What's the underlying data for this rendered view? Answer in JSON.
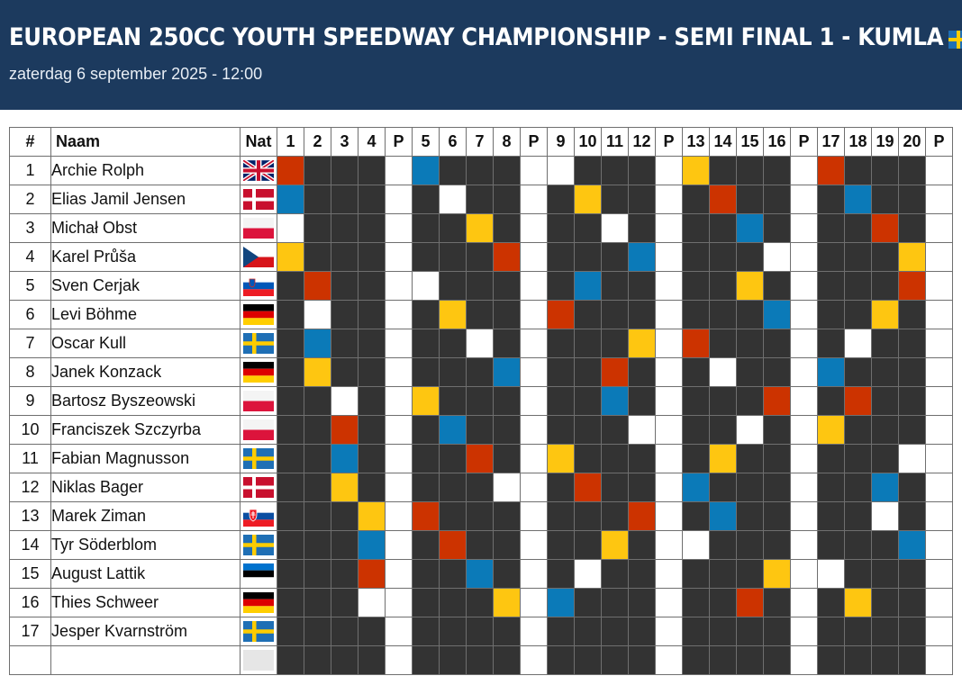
{
  "header": {
    "title": "EUROPEAN 250CC YOUTH SPEEDWAY CHAMPIONSHIP - SEMI FINAL 1 - KUMLA",
    "title_flag": "se",
    "subtitle": "zaterdag 6 september 2025 - 12:00"
  },
  "table": {
    "columns": [
      "#",
      "Naam",
      "Nat",
      "1",
      "2",
      "3",
      "4",
      "P",
      "5",
      "6",
      "7",
      "8",
      "P",
      "9",
      "10",
      "11",
      "12",
      "P",
      "13",
      "14",
      "15",
      "16",
      "P",
      "17",
      "18",
      "19",
      "20",
      "P"
    ],
    "rows": [
      {
        "num": "1",
        "name": "Archie Rolph",
        "flag": "gb",
        "heats": {
          "1": "red",
          "5": "blue",
          "9": "white",
          "13": "yellow",
          "17": "red"
        }
      },
      {
        "num": "2",
        "name": "Elias Jamil Jensen",
        "flag": "dk",
        "heats": {
          "1": "blue",
          "6": "white",
          "10": "yellow",
          "14": "red",
          "18": "blue"
        }
      },
      {
        "num": "3",
        "name": "Michał Obst",
        "flag": "pl",
        "heats": {
          "1": "white",
          "7": "yellow",
          "11": "white",
          "15": "blue",
          "19": "red"
        }
      },
      {
        "num": "4",
        "name": "Karel Průša",
        "flag": "cz",
        "heats": {
          "1": "yellow",
          "8": "red",
          "12": "blue",
          "16": "white",
          "20": "yellow"
        }
      },
      {
        "num": "5",
        "name": "Sven Cerjak",
        "flag": "si",
        "heats": {
          "2": "red",
          "5": "white",
          "10": "blue",
          "15": "yellow",
          "20": "red"
        }
      },
      {
        "num": "6",
        "name": "Levi Böhme",
        "flag": "de",
        "heats": {
          "2": "white",
          "6": "yellow",
          "9": "red",
          "16": "blue",
          "19": "yellow"
        }
      },
      {
        "num": "7",
        "name": "Oscar Kull",
        "flag": "se",
        "heats": {
          "2": "blue",
          "7": "white",
          "12": "yellow",
          "13": "red",
          "18": "white"
        }
      },
      {
        "num": "8",
        "name": "Janek Konzack",
        "flag": "de",
        "heats": {
          "2": "yellow",
          "8": "blue",
          "11": "red",
          "14": "white",
          "17": "blue"
        }
      },
      {
        "num": "9",
        "name": "Bartosz Byszeowski",
        "flag": "pl",
        "heats": {
          "3": "white",
          "5": "yellow",
          "11": "blue",
          "16": "red",
          "18": "red"
        }
      },
      {
        "num": "10",
        "name": "Franciszek Szczyrba",
        "flag": "pl",
        "heats": {
          "3": "red",
          "6": "blue",
          "12": "white",
          "15": "white",
          "17": "yellow"
        }
      },
      {
        "num": "11",
        "name": "Fabian Magnusson",
        "flag": "se",
        "heats": {
          "3": "blue",
          "7": "red",
          "9": "yellow",
          "14": "yellow",
          "20": "white"
        }
      },
      {
        "num": "12",
        "name": "Niklas Bager",
        "flag": "dk",
        "heats": {
          "3": "yellow",
          "8": "white",
          "10": "red",
          "13": "blue",
          "19": "blue"
        }
      },
      {
        "num": "13",
        "name": "Marek Ziman",
        "flag": "sk",
        "heats": {
          "4": "yellow",
          "5": "red",
          "12": "red",
          "14": "blue",
          "19": "white"
        }
      },
      {
        "num": "14",
        "name": "Tyr Söderblom",
        "flag": "se",
        "heats": {
          "4": "blue",
          "6": "red",
          "11": "yellow",
          "13": "white",
          "20": "blue"
        }
      },
      {
        "num": "15",
        "name": "August Lattik",
        "flag": "ee",
        "heats": {
          "4": "red",
          "7": "blue",
          "10": "white",
          "16": "yellow",
          "17": "white"
        }
      },
      {
        "num": "16",
        "name": "Thies Schweer",
        "flag": "de",
        "heats": {
          "4": "white",
          "8": "yellow",
          "9": "blue",
          "15": "red",
          "18": "yellow"
        }
      },
      {
        "num": "17",
        "name": "Jesper Kvarnström",
        "flag": "se",
        "heats": {}
      },
      {
        "num": "",
        "name": "",
        "flag": "empty",
        "heats": {}
      }
    ]
  },
  "colors": {
    "header_bg": "#1c3a5e",
    "empty_cell": "#333333",
    "red": "#cc3300",
    "blue": "#0b7ab8",
    "white": "#ffffff",
    "yellow": "#fec611"
  }
}
